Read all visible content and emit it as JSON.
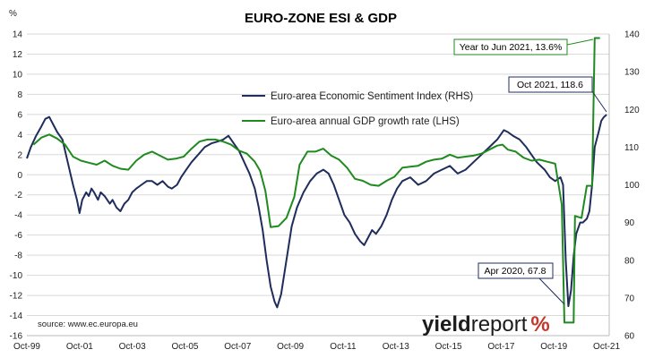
{
  "chart_data": {
    "type": "line",
    "title": "EURO-ZONE ESI & GDP",
    "y_left_unit": "%",
    "y_left": {
      "min": -16,
      "max": 14,
      "ticks": [
        14,
        12,
        10,
        8,
        6,
        4,
        2,
        0,
        -2,
        -4,
        -6,
        -8,
        -10,
        -12,
        -14,
        -16
      ]
    },
    "y_right": {
      "min": 60,
      "max": 140,
      "ticks": [
        140,
        130,
        120,
        110,
        100,
        90,
        80,
        70,
        60
      ]
    },
    "x_range": [
      1999.75,
      2021.85
    ],
    "x_ticks": [
      {
        "label": "Oct-99",
        "x": 1999.75
      },
      {
        "label": "Oct-01",
        "x": 2001.75
      },
      {
        "label": "Oct-03",
        "x": 2003.75
      },
      {
        "label": "Oct-05",
        "x": 2005.75
      },
      {
        "label": "Oct-07",
        "x": 2007.75
      },
      {
        "label": "Oct-09",
        "x": 2009.75
      },
      {
        "label": "Oct-11",
        "x": 2011.75
      },
      {
        "label": "Oct-13",
        "x": 2013.75
      },
      {
        "label": "Oct-15",
        "x": 2015.75
      },
      {
        "label": "Oct-17",
        "x": 2017.75
      },
      {
        "label": "Oct-19",
        "x": 2019.75
      },
      {
        "label": "Oct-21",
        "x": 2021.75
      }
    ],
    "grid": true,
    "legend_position": "center-left",
    "series": [
      {
        "name": "Euro-area Economic Sentiment Index (RHS)",
        "axis": "right",
        "color": "#1f2d5c",
        "points": [
          [
            1999.75,
            107
          ],
          [
            1999.9,
            110
          ],
          [
            2000.1,
            113
          ],
          [
            2000.3,
            115.5
          ],
          [
            2000.45,
            117.5
          ],
          [
            2000.6,
            118
          ],
          [
            2000.75,
            116
          ],
          [
            2000.9,
            114
          ],
          [
            2001.1,
            112
          ],
          [
            2001.3,
            106
          ],
          [
            2001.5,
            100
          ],
          [
            2001.65,
            96
          ],
          [
            2001.75,
            92.5
          ],
          [
            2001.85,
            96
          ],
          [
            2002.0,
            98
          ],
          [
            2002.1,
            97
          ],
          [
            2002.2,
            99
          ],
          [
            2002.3,
            98
          ],
          [
            2002.45,
            96
          ],
          [
            2002.55,
            98
          ],
          [
            2002.7,
            97
          ],
          [
            2002.8,
            96
          ],
          [
            2002.9,
            95
          ],
          [
            2003.0,
            96
          ],
          [
            2003.15,
            94
          ],
          [
            2003.3,
            93
          ],
          [
            2003.45,
            95
          ],
          [
            2003.6,
            96
          ],
          [
            2003.75,
            98
          ],
          [
            2003.9,
            99
          ],
          [
            2004.1,
            100
          ],
          [
            2004.3,
            101
          ],
          [
            2004.5,
            101
          ],
          [
            2004.7,
            100
          ],
          [
            2004.9,
            101
          ],
          [
            2005.1,
            99.5
          ],
          [
            2005.25,
            99
          ],
          [
            2005.45,
            100
          ],
          [
            2005.6,
            102
          ],
          [
            2005.8,
            104
          ],
          [
            2006.0,
            106
          ],
          [
            2006.25,
            108
          ],
          [
            2006.5,
            110
          ],
          [
            2006.75,
            111
          ],
          [
            2007.0,
            111.5
          ],
          [
            2007.2,
            112
          ],
          [
            2007.4,
            113
          ],
          [
            2007.6,
            111
          ],
          [
            2007.8,
            109
          ],
          [
            2008.0,
            106
          ],
          [
            2008.2,
            103
          ],
          [
            2008.4,
            99
          ],
          [
            2008.55,
            94
          ],
          [
            2008.7,
            88
          ],
          [
            2008.85,
            80
          ],
          [
            2009.0,
            73
          ],
          [
            2009.15,
            69
          ],
          [
            2009.25,
            67.5
          ],
          [
            2009.4,
            71
          ],
          [
            2009.6,
            80
          ],
          [
            2009.8,
            89
          ],
          [
            2010.0,
            94
          ],
          [
            2010.25,
            98
          ],
          [
            2010.5,
            101
          ],
          [
            2010.75,
            103
          ],
          [
            2011.0,
            104
          ],
          [
            2011.2,
            103
          ],
          [
            2011.4,
            100
          ],
          [
            2011.6,
            96
          ],
          [
            2011.8,
            92
          ],
          [
            2012.0,
            90
          ],
          [
            2012.2,
            87
          ],
          [
            2012.4,
            85
          ],
          [
            2012.55,
            84
          ],
          [
            2012.7,
            86
          ],
          [
            2012.85,
            88
          ],
          [
            2013.0,
            87
          ],
          [
            2013.2,
            89
          ],
          [
            2013.4,
            92
          ],
          [
            2013.6,
            96
          ],
          [
            2013.8,
            99
          ],
          [
            2014.0,
            101
          ],
          [
            2014.3,
            102
          ],
          [
            2014.6,
            100
          ],
          [
            2014.9,
            101
          ],
          [
            2015.2,
            103
          ],
          [
            2015.5,
            104
          ],
          [
            2015.8,
            105
          ],
          [
            2016.1,
            103
          ],
          [
            2016.4,
            104
          ],
          [
            2016.7,
            106
          ],
          [
            2017.0,
            108
          ],
          [
            2017.3,
            110
          ],
          [
            2017.6,
            112
          ],
          [
            2017.85,
            114.5
          ],
          [
            2018.0,
            114
          ],
          [
            2018.2,
            113
          ],
          [
            2018.45,
            112
          ],
          [
            2018.7,
            110
          ],
          [
            2018.9,
            108
          ],
          [
            2019.1,
            106
          ],
          [
            2019.4,
            104
          ],
          [
            2019.6,
            102
          ],
          [
            2019.8,
            101
          ],
          [
            2020.0,
            102
          ],
          [
            2020.1,
            100
          ],
          [
            2020.2,
            80
          ],
          [
            2020.3,
            67.8
          ],
          [
            2020.4,
            72
          ],
          [
            2020.5,
            81
          ],
          [
            2020.6,
            87
          ],
          [
            2020.75,
            90
          ],
          [
            2020.85,
            90
          ],
          [
            2021.0,
            91
          ],
          [
            2021.1,
            93
          ],
          [
            2021.2,
            100
          ],
          [
            2021.3,
            110
          ],
          [
            2021.45,
            114
          ],
          [
            2021.55,
            117
          ],
          [
            2021.65,
            118
          ],
          [
            2021.75,
            118.6
          ]
        ]
      },
      {
        "name": "Euro-area annual GDP growth rate (LHS)",
        "axis": "left",
        "color": "#1f8a1f",
        "points": [
          [
            2000.0,
            3.0
          ],
          [
            2000.3,
            3.7
          ],
          [
            2000.6,
            4.0
          ],
          [
            2000.9,
            3.6
          ],
          [
            2001.2,
            3.0
          ],
          [
            2001.5,
            1.8
          ],
          [
            2001.8,
            1.4
          ],
          [
            2002.1,
            1.2
          ],
          [
            2002.4,
            1.0
          ],
          [
            2002.7,
            1.4
          ],
          [
            2003.0,
            0.9
          ],
          [
            2003.3,
            0.6
          ],
          [
            2003.6,
            0.5
          ],
          [
            2003.9,
            1.4
          ],
          [
            2004.2,
            2.0
          ],
          [
            2004.5,
            2.3
          ],
          [
            2004.8,
            1.9
          ],
          [
            2005.1,
            1.5
          ],
          [
            2005.4,
            1.6
          ],
          [
            2005.7,
            1.8
          ],
          [
            2006.0,
            2.6
          ],
          [
            2006.3,
            3.3
          ],
          [
            2006.6,
            3.5
          ],
          [
            2006.9,
            3.5
          ],
          [
            2007.2,
            3.3
          ],
          [
            2007.5,
            3.0
          ],
          [
            2007.8,
            2.4
          ],
          [
            2008.1,
            2.1
          ],
          [
            2008.4,
            1.3
          ],
          [
            2008.6,
            0.4
          ],
          [
            2008.8,
            -1.6
          ],
          [
            2009.0,
            -5.2
          ],
          [
            2009.3,
            -5.1
          ],
          [
            2009.6,
            -4.3
          ],
          [
            2009.9,
            -2.2
          ],
          [
            2010.1,
            1.0
          ],
          [
            2010.4,
            2.3
          ],
          [
            2010.7,
            2.3
          ],
          [
            2011.0,
            2.6
          ],
          [
            2011.3,
            1.9
          ],
          [
            2011.6,
            1.5
          ],
          [
            2011.9,
            0.7
          ],
          [
            2012.2,
            -0.4
          ],
          [
            2012.5,
            -0.6
          ],
          [
            2012.8,
            -1.0
          ],
          [
            2013.1,
            -1.1
          ],
          [
            2013.4,
            -0.6
          ],
          [
            2013.7,
            -0.2
          ],
          [
            2014.0,
            0.7
          ],
          [
            2014.3,
            0.8
          ],
          [
            2014.6,
            0.9
          ],
          [
            2014.9,
            1.3
          ],
          [
            2015.2,
            1.5
          ],
          [
            2015.5,
            1.6
          ],
          [
            2015.8,
            2.0
          ],
          [
            2016.1,
            1.7
          ],
          [
            2016.4,
            1.8
          ],
          [
            2016.7,
            1.9
          ],
          [
            2017.0,
            2.1
          ],
          [
            2017.3,
            2.5
          ],
          [
            2017.6,
            2.9
          ],
          [
            2017.8,
            3.0
          ],
          [
            2018.0,
            2.5
          ],
          [
            2018.3,
            2.3
          ],
          [
            2018.6,
            1.7
          ],
          [
            2018.9,
            1.4
          ],
          [
            2019.2,
            1.5
          ],
          [
            2019.5,
            1.3
          ],
          [
            2019.8,
            1.1
          ],
          [
            2020.05,
            -3.0
          ],
          [
            2020.15,
            -14.7
          ],
          [
            2020.5,
            -14.7
          ],
          [
            2020.55,
            -4.1
          ],
          [
            2020.8,
            -4.3
          ],
          [
            2021.0,
            -1.1
          ],
          [
            2021.2,
            -1.1
          ],
          [
            2021.3,
            13.6
          ],
          [
            2021.5,
            13.6
          ]
        ]
      }
    ],
    "annotations": [
      {
        "text": "Year to Jun 2021, 13.6%"
      },
      {
        "text": "Oct 2021, 118.6"
      },
      {
        "text": "Apr 2020, 67.8"
      }
    ],
    "source": "source: www.ec.europa.eu",
    "brand": {
      "word1": "yield",
      "word2": "report",
      "symbol": "%"
    }
  }
}
